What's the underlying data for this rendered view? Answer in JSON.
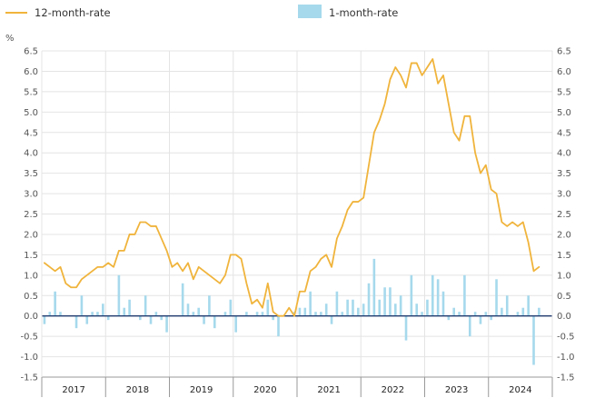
{
  "colors": {
    "line": "#f0b43c",
    "bar": "#a6d9ec",
    "grid": "#e4e4e4",
    "axis": "#999999",
    "zero": "#1f3a6e",
    "background": "#ffffff"
  },
  "chart_data": {
    "type": "bar",
    "title": "",
    "xlabel": "",
    "ylabel": "%",
    "ylim": [
      -1.5,
      6.5
    ],
    "yticks": [
      -1.5,
      -1.0,
      -0.5,
      0.0,
      0.5,
      1.0,
      1.5,
      2.0,
      2.5,
      3.0,
      3.5,
      4.0,
      4.5,
      5.0,
      5.5,
      6.0,
      6.5
    ],
    "ytick_labels": [
      "-1.5",
      "-1.0",
      "-0.5",
      "0.0",
      "0.5",
      "1.0",
      "1.5",
      "2.0",
      "2.5",
      "3.0",
      "3.5",
      "4.0",
      "4.5",
      "5.0",
      "5.5",
      "6.0",
      "6.5"
    ],
    "y_axes": "both left and right, same scale",
    "grid": "horizontal and vertical (year boundaries)",
    "legend_position": "top-left",
    "x_axis_type": "monthly dates",
    "x_start": "2017-01",
    "x_end": "2024-05",
    "year_labels": [
      "2017",
      "2018",
      "2019",
      "2020",
      "2021",
      "2022",
      "2023",
      "2024"
    ],
    "series": [
      {
        "name": "12-month-rate",
        "type": "line",
        "color": "#f0b43c",
        "values": [
          1.3,
          1.2,
          1.1,
          1.2,
          0.8,
          0.7,
          0.7,
          0.9,
          1.0,
          1.1,
          1.2,
          1.2,
          1.3,
          1.2,
          1.6,
          1.6,
          2.0,
          2.0,
          2.3,
          2.3,
          2.2,
          2.2,
          1.9,
          1.6,
          1.2,
          1.3,
          1.1,
          1.3,
          0.9,
          1.2,
          1.1,
          1.0,
          0.9,
          0.8,
          1.0,
          1.5,
          1.5,
          1.4,
          0.8,
          0.3,
          0.4,
          0.2,
          0.8,
          0.1,
          0.0,
          0.0,
          0.2,
          0.0,
          0.6,
          0.6,
          1.1,
          1.2,
          1.4,
          1.5,
          1.2,
          1.9,
          2.2,
          2.6,
          2.8,
          2.8,
          2.9,
          3.7,
          4.5,
          4.8,
          5.2,
          5.8,
          6.1,
          5.9,
          5.6,
          6.2,
          6.2,
          5.9,
          6.1,
          6.3,
          5.7,
          5.9,
          5.2,
          4.5,
          4.3,
          4.9,
          4.9,
          4.0,
          3.5,
          3.7,
          3.1,
          3.0,
          2.3,
          2.2,
          2.3,
          2.2,
          2.3,
          1.8,
          1.1,
          1.2
        ]
      },
      {
        "name": "1-month-rate",
        "type": "bar",
        "color": "#a6d9ec",
        "values": [
          -0.2,
          0.1,
          0.6,
          0.1,
          0.0,
          0.0,
          -0.3,
          0.5,
          -0.2,
          0.1,
          0.1,
          0.3,
          -0.1,
          0.0,
          1.0,
          0.2,
          0.4,
          0.0,
          -0.1,
          0.5,
          -0.2,
          0.1,
          -0.1,
          -0.4,
          0.0,
          0.0,
          0.8,
          0.3,
          0.1,
          0.2,
          -0.2,
          0.5,
          -0.3,
          0.0,
          0.1,
          0.4,
          -0.4,
          0.0,
          0.1,
          0.0,
          0.1,
          0.1,
          0.4,
          -0.1,
          -0.5,
          0.0,
          0.0,
          0.1,
          0.2,
          0.2,
          0.6,
          0.1,
          0.1,
          0.3,
          -0.2,
          0.6,
          0.1,
          0.4,
          0.4,
          0.2,
          0.3,
          0.8,
          1.4,
          0.4,
          0.7,
          0.7,
          0.3,
          0.5,
          -0.6,
          1.0,
          0.3,
          0.1,
          0.4,
          1.0,
          0.9,
          0.6,
          -0.1,
          0.2,
          0.1,
          1.0,
          -0.5,
          0.1,
          -0.2,
          0.1,
          -0.1,
          0.9,
          0.2,
          0.5,
          0.0,
          0.1,
          0.2,
          0.5,
          -1.2,
          0.2
        ]
      }
    ]
  }
}
